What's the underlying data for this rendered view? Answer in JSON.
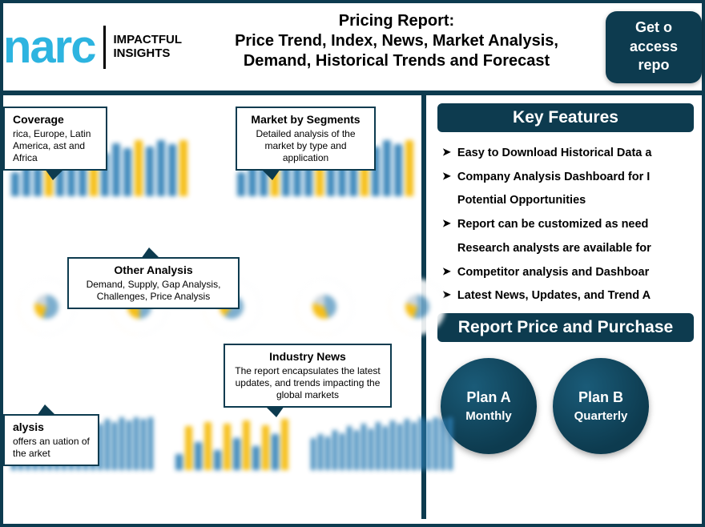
{
  "brand": {
    "logo_text": "narc",
    "tagline_l1": "IMPACTFUL",
    "tagline_l2": "INSIGHTS",
    "logo_color": "#2db4e0"
  },
  "header": {
    "title_l1": "Pricing Report:",
    "title_l2": "Price Trend, Index, News, Market Analysis, Demand, Historical Trends and Forecast",
    "cta_l1": "Get o",
    "cta_l2": "access",
    "cta_l3": "repo"
  },
  "callouts": {
    "coverage": {
      "title": "Coverage",
      "body": "rica, Europe, Latin America, ast and Africa"
    },
    "segments": {
      "title": "Market by Segments",
      "body": "Detailed analysis of the market by type and application"
    },
    "other": {
      "title": "Other Analysis",
      "body": "Demand, Supply, Gap Analysis, Challenges, Price Analysis"
    },
    "news": {
      "title": "Industry News",
      "body": "The report encapsulates the latest updates, and trends impacting the global markets"
    },
    "analysis": {
      "title": "alysis",
      "body": "offers an uation of the arket"
    }
  },
  "features": {
    "heading": "Key Features",
    "items": [
      "Easy to Download Historical Data a",
      "Company Analysis Dashboard for I Potential Opportunities",
      "Report can be customized as need Research analysts are available for",
      "Competitor analysis and Dashboar",
      "Latest News, Updates, and Trend A"
    ]
  },
  "purchase": {
    "heading": "Report Price and Purchase",
    "plans": [
      {
        "name": "Plan A",
        "period": "Monthly"
      },
      {
        "name": "Plan B",
        "period": "Quarterly"
      }
    ]
  },
  "bg": {
    "bar_color_main": "#2d7eb5",
    "bar_color_accent": "#f5b800",
    "donut_blue": "#6fa6c9",
    "donut_yellow": "#f5b800",
    "donut_grey": "#c9d4db",
    "bars_row1": [
      30,
      42,
      36,
      50,
      44,
      56,
      48,
      62,
      54,
      66,
      60,
      70,
      62,
      70,
      65,
      70
    ],
    "bars_row3a": [
      40,
      45,
      42,
      50,
      46,
      55,
      50,
      58,
      52,
      60,
      55,
      62,
      58,
      64,
      60,
      66,
      62,
      66,
      64,
      66
    ],
    "bars_row3b": [
      20,
      55,
      35,
      60,
      25,
      58,
      40,
      62,
      30,
      56,
      45,
      64
    ]
  }
}
